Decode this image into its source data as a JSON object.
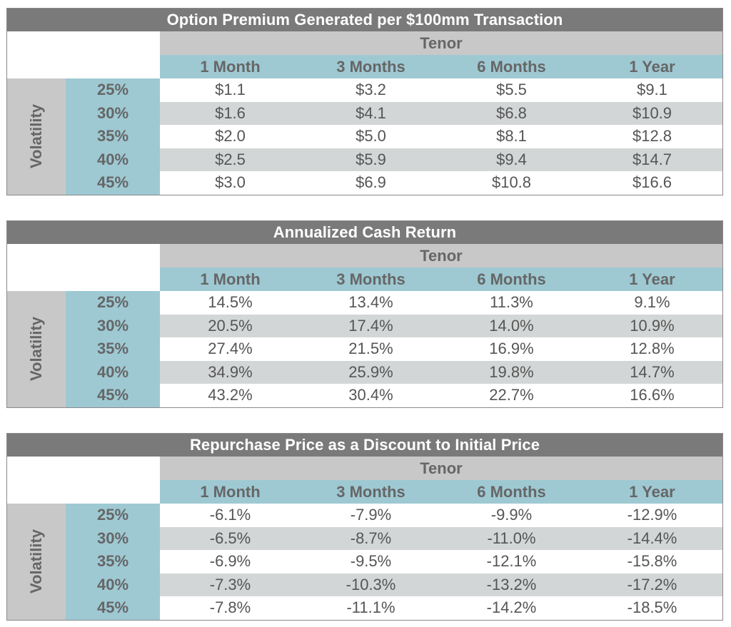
{
  "tables": [
    {
      "title": "Option Premium Generated per $100mm Transaction",
      "tenor_label": "Tenor",
      "columns": [
        "1 Month",
        "3 Months",
        "6 Months",
        "1 Year"
      ],
      "row_group_label": "Volatility",
      "rows": [
        {
          "vol": "25%",
          "values": [
            "$1.1",
            "$3.2",
            "$5.5",
            "$9.1"
          ]
        },
        {
          "vol": "30%",
          "values": [
            "$1.6",
            "$4.1",
            "$6.8",
            "$10.9"
          ]
        },
        {
          "vol": "35%",
          "values": [
            "$2.0",
            "$5.0",
            "$8.1",
            "$12.8"
          ]
        },
        {
          "vol": "40%",
          "values": [
            "$2.5",
            "$5.9",
            "$9.4",
            "$14.7"
          ]
        },
        {
          "vol": "45%",
          "values": [
            "$3.0",
            "$6.9",
            "$10.8",
            "$16.6"
          ]
        }
      ]
    },
    {
      "title": "Annualized Cash Return",
      "tenor_label": "Tenor",
      "columns": [
        "1 Month",
        "3 Months",
        "6 Months",
        "1 Year"
      ],
      "row_group_label": "Volatility",
      "rows": [
        {
          "vol": "25%",
          "values": [
            "14.5%",
            "13.4%",
            "11.3%",
            "9.1%"
          ]
        },
        {
          "vol": "30%",
          "values": [
            "20.5%",
            "17.4%",
            "14.0%",
            "10.9%"
          ]
        },
        {
          "vol": "35%",
          "values": [
            "27.4%",
            "21.5%",
            "16.9%",
            "12.8%"
          ]
        },
        {
          "vol": "40%",
          "values": [
            "34.9%",
            "25.9%",
            "19.8%",
            "14.7%"
          ]
        },
        {
          "vol": "45%",
          "values": [
            "43.2%",
            "30.4%",
            "22.7%",
            "16.6%"
          ]
        }
      ]
    },
    {
      "title": "Repurchase Price as a Discount to Initial Price",
      "tenor_label": "Tenor",
      "columns": [
        "1 Month",
        "3 Months",
        "6 Months",
        "1 Year"
      ],
      "row_group_label": "Volatility",
      "rows": [
        {
          "vol": "25%",
          "values": [
            "-6.1%",
            "-7.9%",
            "-9.9%",
            "-12.9%"
          ]
        },
        {
          "vol": "30%",
          "values": [
            "-6.5%",
            "-8.7%",
            "-11.0%",
            "-14.4%"
          ]
        },
        {
          "vol": "35%",
          "values": [
            "-6.9%",
            "-9.5%",
            "-12.1%",
            "-15.8%"
          ]
        },
        {
          "vol": "40%",
          "values": [
            "-7.3%",
            "-10.3%",
            "-13.2%",
            "-17.2%"
          ]
        },
        {
          "vol": "45%",
          "values": [
            "-7.8%",
            "-11.1%",
            "-14.2%",
            "-18.5%"
          ]
        }
      ]
    }
  ],
  "colors": {
    "title_bar": "#7a7a7a",
    "tenor_bar": "#c8c8c8",
    "header_teal": "#9ec9d3",
    "alt_row": "#d3d6d6",
    "text_gray": "#666666"
  }
}
